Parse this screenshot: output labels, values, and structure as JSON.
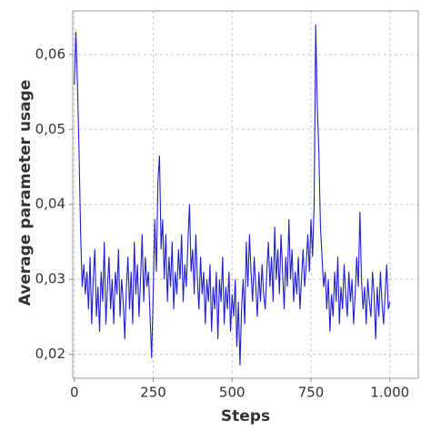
{
  "chart_data": {
    "type": "line",
    "x_label": "Steps",
    "y_label": "Average parameter usage",
    "xlim": [
      -5,
      1090
    ],
    "ylim": [
      0.0168,
      0.0658
    ],
    "xticks": [
      0,
      250,
      500,
      750,
      {
        "value": 1000,
        "label": "1.000"
      }
    ],
    "yticks": [
      {
        "value": 0.02,
        "label": "0,02"
      },
      {
        "value": 0.03,
        "label": "0,03"
      },
      {
        "value": 0.04,
        "label": "0,04"
      },
      {
        "value": 0.05,
        "label": "0,05"
      },
      {
        "value": 0.06,
        "label": "0,06"
      }
    ],
    "grid": true,
    "x": [
      0,
      5,
      10,
      15,
      20,
      25,
      30,
      35,
      40,
      45,
      50,
      55,
      60,
      65,
      70,
      75,
      80,
      85,
      90,
      95,
      100,
      105,
      110,
      115,
      120,
      125,
      130,
      135,
      140,
      145,
      150,
      155,
      160,
      165,
      170,
      175,
      180,
      185,
      190,
      195,
      200,
      205,
      210,
      215,
      220,
      225,
      230,
      235,
      240,
      245,
      250,
      255,
      260,
      265,
      270,
      275,
      280,
      285,
      290,
      295,
      300,
      305,
      310,
      315,
      320,
      325,
      330,
      335,
      340,
      345,
      350,
      355,
      360,
      365,
      370,
      375,
      380,
      385,
      390,
      395,
      400,
      405,
      410,
      415,
      420,
      425,
      430,
      435,
      440,
      445,
      450,
      455,
      460,
      465,
      470,
      475,
      480,
      485,
      490,
      495,
      500,
      505,
      510,
      515,
      520,
      525,
      530,
      535,
      540,
      545,
      550,
      555,
      560,
      565,
      570,
      575,
      580,
      585,
      590,
      595,
      600,
      605,
      610,
      615,
      620,
      625,
      630,
      635,
      640,
      645,
      650,
      655,
      660,
      665,
      670,
      675,
      680,
      685,
      690,
      695,
      700,
      705,
      710,
      715,
      720,
      725,
      730,
      735,
      740,
      745,
      750,
      755,
      760,
      765,
      770,
      775,
      780,
      785,
      790,
      795,
      800,
      805,
      810,
      815,
      820,
      825,
      830,
      835,
      840,
      845,
      850,
      855,
      860,
      865,
      870,
      875,
      880,
      885,
      890,
      895,
      900,
      905,
      910,
      915,
      920,
      925,
      930,
      935,
      940,
      945,
      950,
      955,
      960,
      965,
      970,
      975,
      980,
      985,
      990,
      995,
      1000
    ],
    "series": [
      {
        "color": "#1f1fd0",
        "values": [
          0.056,
          0.063,
          0.056,
          0.047,
          0.036,
          0.029,
          0.032,
          0.028,
          0.031,
          0.026,
          0.033,
          0.024,
          0.03,
          0.034,
          0.025,
          0.029,
          0.023,
          0.031,
          0.027,
          0.035,
          0.024,
          0.029,
          0.033,
          0.026,
          0.03,
          0.024,
          0.031,
          0.028,
          0.034,
          0.025,
          0.03,
          0.027,
          0.022,
          0.029,
          0.033,
          0.026,
          0.031,
          0.024,
          0.035,
          0.028,
          0.032,
          0.025,
          0.03,
          0.036,
          0.027,
          0.033,
          0.029,
          0.031,
          0.025,
          0.0195,
          0.028,
          0.038,
          0.031,
          0.043,
          0.0465,
          0.034,
          0.038,
          0.03,
          0.036,
          0.027,
          0.033,
          0.029,
          0.035,
          0.026,
          0.031,
          0.028,
          0.034,
          0.03,
          0.036,
          0.027,
          0.032,
          0.029,
          0.035,
          0.04,
          0.031,
          0.034,
          0.028,
          0.036,
          0.03,
          0.026,
          0.033,
          0.028,
          0.031,
          0.024,
          0.03,
          0.027,
          0.032,
          0.023,
          0.029,
          0.026,
          0.031,
          0.022,
          0.03,
          0.027,
          0.033,
          0.024,
          0.029,
          0.026,
          0.031,
          0.023,
          0.028,
          0.025,
          0.03,
          0.021,
          0.027,
          0.0185,
          0.026,
          0.03,
          0.024,
          0.035,
          0.029,
          0.036,
          0.031,
          0.027,
          0.033,
          0.029,
          0.025,
          0.031,
          0.027,
          0.032,
          0.028,
          0.026,
          0.031,
          0.035,
          0.029,
          0.033,
          0.027,
          0.037,
          0.03,
          0.034,
          0.028,
          0.036,
          0.031,
          0.026,
          0.033,
          0.029,
          0.038,
          0.03,
          0.034,
          0.027,
          0.031,
          0.028,
          0.033,
          0.026,
          0.03,
          0.034,
          0.029,
          0.032,
          0.036,
          0.031,
          0.038,
          0.033,
          0.04,
          0.064,
          0.053,
          0.047,
          0.037,
          0.033,
          0.029,
          0.031,
          0.026,
          0.03,
          0.023,
          0.028,
          0.025,
          0.031,
          0.027,
          0.033,
          0.024,
          0.029,
          0.026,
          0.032,
          0.028,
          0.025,
          0.031,
          0.027,
          0.03,
          0.024,
          0.028,
          0.033,
          0.029,
          0.039,
          0.03,
          0.026,
          0.029,
          0.024,
          0.03,
          0.027,
          0.025,
          0.031,
          0.028,
          0.022,
          0.029,
          0.025,
          0.031,
          0.027,
          0.024,
          0.028,
          0.032,
          0.026,
          0.027
        ]
      }
    ]
  }
}
